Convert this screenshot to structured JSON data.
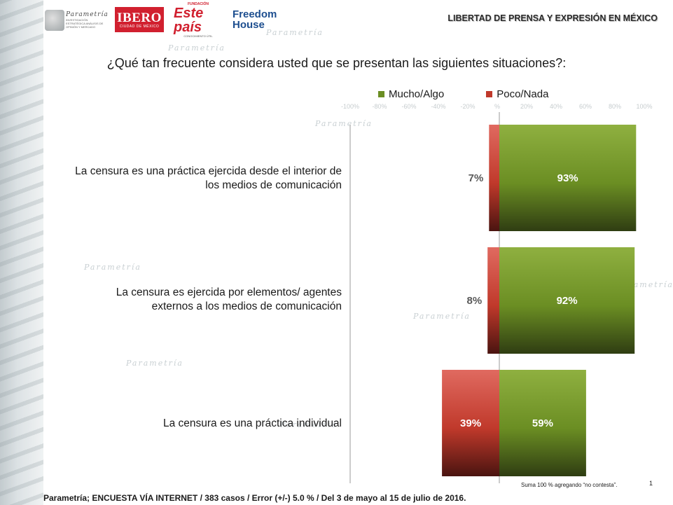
{
  "header": {
    "report_title": "LIBERTAD DE PRENSA Y EXPRESIÓN EN MÉXICO",
    "logos": {
      "parametria_name": "Parametría",
      "parametria_tag": "INVESTIGACIÓN ESTRATÉGICA ANÁLISIS DE OPINIÓN Y MERCADO",
      "ibero_name": "IBERO",
      "ibero_sub": "CIUDAD DE MÉXICO",
      "este_top": "FUNDACIÓN",
      "este_name": "Este país",
      "este_sub": "CONOCIMIENTO ÚTIL",
      "fh_line1": "Freedom",
      "fh_line2": "House"
    },
    "watermark_text": "Parametría"
  },
  "chart_data": {
    "type": "bar",
    "orientation": "horizontal",
    "stacked": "diverging",
    "title": "¿Qué tan frecuente considera usted que se presentan las siguientes situaciones?:",
    "categories": [
      "La censura es una práctica ejercida desde el interior de los medios de comunicación",
      "La censura es ejercida por elementos/ agentes externos a los medios de comunicación",
      "La censura es una práctica individual"
    ],
    "series": [
      {
        "name": "Mucho/Algo",
        "color": "#6b8e23",
        "values": [
          93,
          92,
          59
        ],
        "labels": [
          "93%",
          "92%",
          "59%"
        ]
      },
      {
        "name": "Poco/Nada",
        "color": "#c0392b",
        "values": [
          -7,
          -8,
          -39
        ],
        "labels": [
          "7%",
          "8%",
          "39%"
        ]
      }
    ],
    "xlim": [
      -100,
      100
    ],
    "x_ticks": [
      "-100%",
      "-80%",
      "-60%",
      "-40%",
      "-20%",
      "%",
      "20%",
      "40%",
      "60%",
      "80%",
      "100%"
    ],
    "legend_position": "top"
  },
  "labels": {
    "row1_line1": "La censura es una práctica ejercida desde el interior de",
    "row1_line2": "los medios de comunicación",
    "row2_line1": "La censura es ejercida por elementos/ agentes",
    "row2_line2": "externos a los medios de comunicación",
    "row3_line1": "La censura es una práctica individual"
  },
  "footer": {
    "source": "Parametría; ENCUESTA VÍA INTERNET /  383 casos / Error (+/-) 5.0 % / Del 3 de mayo al 15 de julio de 2016.",
    "note": "Suma 100 %  agregando  “no contesta”.",
    "page_number": "1"
  }
}
